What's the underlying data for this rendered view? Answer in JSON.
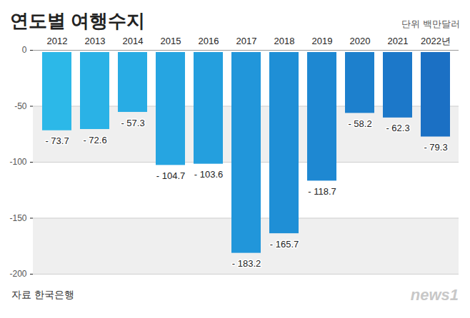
{
  "chart_data": {
    "type": "bar",
    "title": "연도별 여행수지",
    "subtitle": "단위 백만달러",
    "source": "자료 한국은행",
    "credit": "news1",
    "categories": [
      "2012",
      "2013",
      "2014",
      "2015",
      "2016",
      "2017",
      "2018",
      "2019",
      "2020",
      "2021",
      "2022년"
    ],
    "values": [
      -73.7,
      -72.6,
      -57.3,
      -104.7,
      -103.6,
      -183.2,
      -165.7,
      -118.7,
      -58.2,
      -62.3,
      -79.3
    ],
    "value_labels": [
      "- 73.7",
      "- 72.6",
      "- 57.3",
      "- 104.7",
      "- 103.6",
      "- 183.2",
      "- 165.7",
      "- 118.7",
      "- 58.2",
      "- 62.3",
      "- 79.3"
    ],
    "colors": [
      "#2cb8e8",
      "#2ab2e6",
      "#28ace4",
      "#26a5e1",
      "#249fde",
      "#2196da",
      "#1f8fd6",
      "#1e88d2",
      "#1d80cd",
      "#1c78c9",
      "#1b70c4"
    ],
    "ylim": [
      -200,
      0
    ],
    "yticks": [
      0,
      -50,
      -100,
      -150,
      -200
    ],
    "grid": true,
    "data_labels": true
  }
}
